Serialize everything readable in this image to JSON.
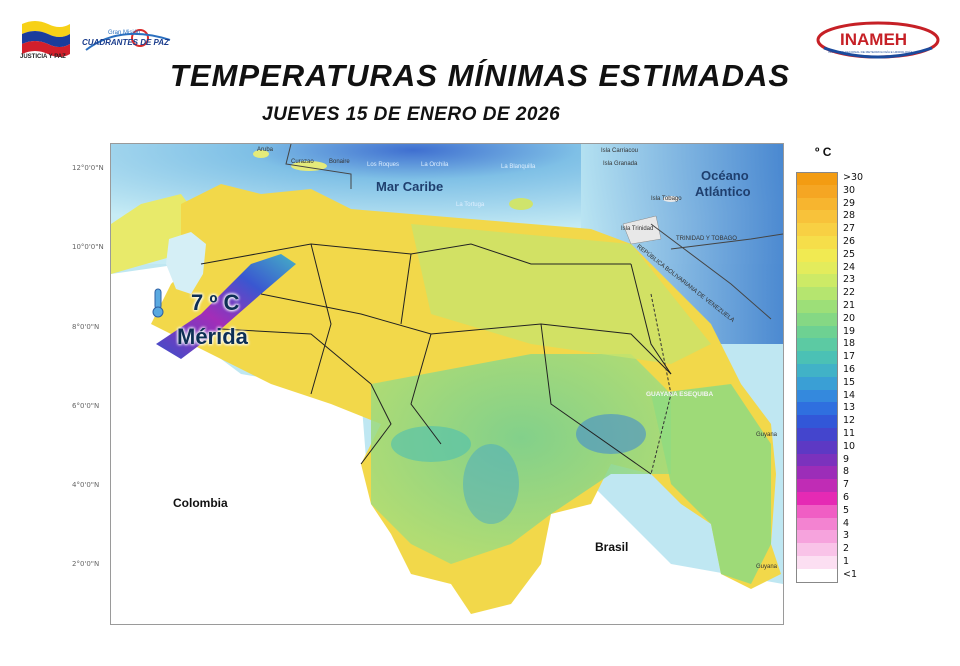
{
  "header": {
    "title": "TEMPERATURAS MÍNIMAS ESTIMADAS",
    "subtitle": "JUEVES 15 DE ENERO DE 2026"
  },
  "logos": {
    "left_org": "JUSTICIA Y PAZ",
    "left_mission_top": "Gran Misión",
    "left_mission": "CUADRANTES DE PAZ",
    "right_org": "INAMEH",
    "right_org_sub": "INSTITUTO NACIONAL DE METEOROLOGÍA E HIDROLOGÍA"
  },
  "latitude_labels": [
    "12°0'0\"N",
    "10°0'0\"N",
    "8°0'0\"N",
    "6°0'0\"N",
    "4°0'0\"N",
    "2°0'0\"N"
  ],
  "map_labels": {
    "mar_caribe": "Mar Caribe",
    "oceano_line1": "Océano",
    "oceano_line2": "Atlántico",
    "colombia": "Colombia",
    "brasil": "Brasil",
    "guyana_esequiba": "GUAYANA ESEQUIBA",
    "guyana": "Guyana",
    "guyana2": "Guyana",
    "trinidad_tobago": "TRINIDAD Y TOBAGO",
    "republica": "REPÚBLICA BOLIVARIANA DE VENEZUELA",
    "aruba": "Aruba",
    "curazao": "Curazao",
    "bonaire": "Bonaire",
    "los_roques": "Los Roques",
    "la_orchila": "La Orchila",
    "la_blanquilla": "La Blanquilla",
    "la_tortuga": "La Tortuga",
    "carriacou": "Isla Carriacou",
    "granada": "Isla Granada",
    "tobago": "Isla Tobago",
    "trinidad": "Isla Trinidad"
  },
  "highlight": {
    "temperature": "7 º C",
    "city": "Mérida",
    "icon": "thermometer-icon"
  },
  "legend": {
    "unit": "º C",
    "items": [
      {
        "label": ">30",
        "color": "#f39c12"
      },
      {
        "label": "30",
        "color": "#f5a623"
      },
      {
        "label": "29",
        "color": "#f7b52f"
      },
      {
        "label": "28",
        "color": "#f8c23a"
      },
      {
        "label": "27",
        "color": "#f8d043"
      },
      {
        "label": "26",
        "color": "#f6de4a"
      },
      {
        "label": "25",
        "color": "#f1ea52"
      },
      {
        "label": "24",
        "color": "#e3ec5c"
      },
      {
        "label": "23",
        "color": "#cdea66"
      },
      {
        "label": "22",
        "color": "#b5e56f"
      },
      {
        "label": "21",
        "color": "#9ddf78"
      },
      {
        "label": "20",
        "color": "#85d884"
      },
      {
        "label": "19",
        "color": "#6ed192"
      },
      {
        "label": "18",
        "color": "#5ccaa3"
      },
      {
        "label": "17",
        "color": "#4bc1b5"
      },
      {
        "label": "16",
        "color": "#41b2c7"
      },
      {
        "label": "15",
        "color": "#3a9fd5"
      },
      {
        "label": "14",
        "color": "#3489dd"
      },
      {
        "label": "13",
        "color": "#2f6fdf"
      },
      {
        "label": "12",
        "color": "#3257d8"
      },
      {
        "label": "11",
        "color": "#4445cd"
      },
      {
        "label": "10",
        "color": "#5d39c4"
      },
      {
        "label": "9",
        "color": "#7b32bd"
      },
      {
        "label": "8",
        "color": "#9c2db8"
      },
      {
        "label": "7",
        "color": "#c02cb5"
      },
      {
        "label": "6",
        "color": "#e52ab4"
      },
      {
        "label": "5",
        "color": "#f05ec4"
      },
      {
        "label": "4",
        "color": "#f383d1"
      },
      {
        "label": "3",
        "color": "#f6a3dd"
      },
      {
        "label": "2",
        "color": "#f9c3e8"
      },
      {
        "label": "1",
        "color": "#fcdff2"
      },
      {
        "label": "<1",
        "color": "#ffffff"
      }
    ]
  }
}
